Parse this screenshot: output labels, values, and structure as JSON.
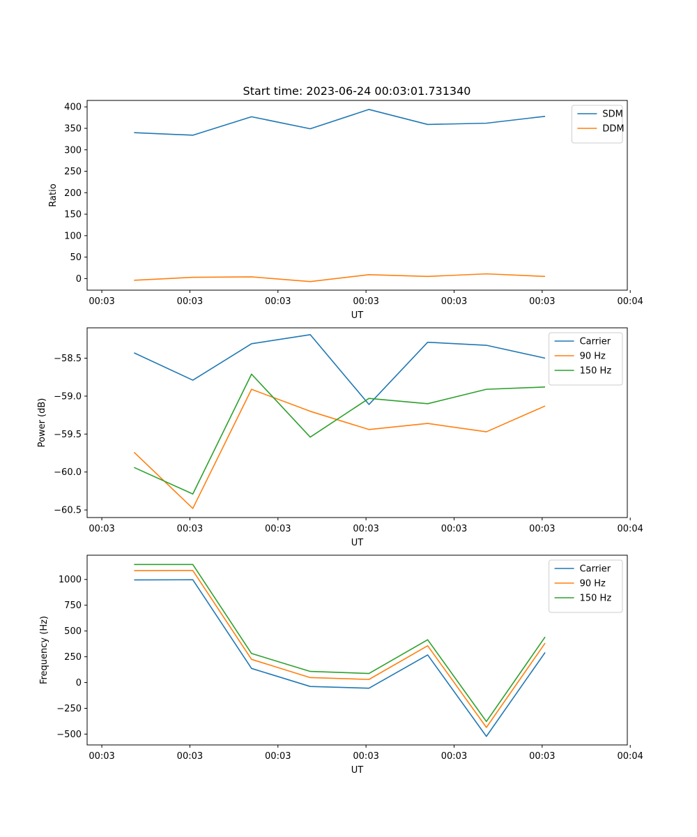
{
  "figure_title": "Start time: 2023-06-24 00:03:01.731340",
  "chart_data": [
    {
      "type": "line",
      "title": "Start time: 2023-06-24 00:03:01.731340",
      "xlabel": "UT",
      "ylabel": "Ratio",
      "x": [
        1,
        2,
        3,
        4,
        5,
        6,
        7,
        8
      ],
      "xlim": [
        0.2,
        9.4
      ],
      "x_ticks": [
        0.45,
        1.95,
        3.45,
        4.95,
        6.45,
        7.95,
        9.45
      ],
      "x_tick_labels": [
        "00:03",
        "00:03",
        "00:03",
        "00:03",
        "00:03",
        "00:03",
        "00:04"
      ],
      "ylim": [
        -27,
        415
      ],
      "y_ticks": [
        0,
        50,
        100,
        150,
        200,
        250,
        300,
        350,
        400
      ],
      "y_tick_labels": [
        "0",
        "50",
        "100",
        "150",
        "200",
        "250",
        "300",
        "350",
        "400"
      ],
      "legend_position": "upper-right",
      "series": [
        {
          "name": "SDM",
          "color": "#1f77b4",
          "values": [
            340,
            334,
            377,
            349,
            394,
            359,
            362,
            378
          ]
        },
        {
          "name": "DDM",
          "color": "#ff7f0e",
          "values": [
            -4,
            3,
            4,
            -7,
            9,
            5,
            11,
            5
          ]
        }
      ]
    },
    {
      "type": "line",
      "title": "",
      "xlabel": "UT",
      "ylabel": "Power (dB)",
      "x": [
        1,
        2,
        3,
        4,
        5,
        6,
        7,
        8
      ],
      "xlim": [
        0.2,
        9.4
      ],
      "x_ticks": [
        0.45,
        1.95,
        3.45,
        4.95,
        6.45,
        7.95,
        9.45
      ],
      "x_tick_labels": [
        "00:03",
        "00:03",
        "00:03",
        "00:03",
        "00:03",
        "00:03",
        "00:04"
      ],
      "ylim": [
        -60.6,
        -58.1
      ],
      "y_ticks": [
        -60.5,
        -60.0,
        -59.5,
        -59.0,
        -58.5
      ],
      "y_tick_labels": [
        "−60.5",
        "−60.0",
        "−59.5",
        "−59.0",
        "−58.5"
      ],
      "legend_position": "upper-right",
      "series": [
        {
          "name": "Carrier",
          "color": "#1f77b4",
          "values": [
            -58.43,
            -58.79,
            -58.31,
            -58.19,
            -59.11,
            -58.29,
            -58.33,
            -58.5
          ]
        },
        {
          "name": "90 Hz",
          "color": "#ff7f0e",
          "values": [
            -59.74,
            -60.48,
            -58.91,
            -59.2,
            -59.44,
            -59.36,
            -59.47,
            -59.13
          ]
        },
        {
          "name": "150 Hz",
          "color": "#2ca02c",
          "values": [
            -59.94,
            -60.29,
            -58.71,
            -59.54,
            -59.03,
            -59.1,
            -58.91,
            -58.88
          ]
        }
      ]
    },
    {
      "type": "line",
      "title": "",
      "xlabel": "UT",
      "ylabel": "Frequency (Hz)",
      "x": [
        1,
        2,
        3,
        4,
        5,
        6,
        7,
        8
      ],
      "xlim": [
        0.2,
        9.4
      ],
      "x_ticks": [
        0.45,
        1.95,
        3.45,
        4.95,
        6.45,
        7.95,
        9.45
      ],
      "x_tick_labels": [
        "00:03",
        "00:03",
        "00:03",
        "00:03",
        "00:03",
        "00:03",
        "00:04"
      ],
      "ylim": [
        -605,
        1235
      ],
      "y_ticks": [
        -500,
        -250,
        0,
        250,
        500,
        750,
        1000
      ],
      "y_tick_labels": [
        "−500",
        "−250",
        "0",
        "250",
        "500",
        "750",
        "1000"
      ],
      "legend_position": "upper-right",
      "series": [
        {
          "name": "Carrier",
          "color": "#1f77b4",
          "values": [
            995,
            997,
            137,
            -38,
            -55,
            268,
            -522,
            292
          ]
        },
        {
          "name": "90 Hz",
          "color": "#ff7f0e",
          "values": [
            1085,
            1087,
            225,
            48,
            30,
            357,
            -435,
            382
          ]
        },
        {
          "name": "150 Hz",
          "color": "#2ca02c",
          "values": [
            1145,
            1145,
            282,
            108,
            88,
            415,
            -378,
            442
          ]
        }
      ]
    }
  ]
}
